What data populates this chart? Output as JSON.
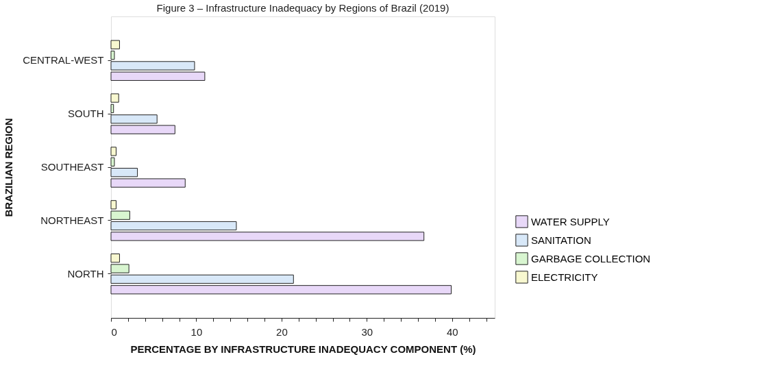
{
  "chart_data": {
    "type": "bar",
    "orientation": "horizontal",
    "title": "Figure 3 – Infrastructure Inadequacy by Regions of Brazil (2019)",
    "xlabel": "PERCENTAGE BY INFRASTRUCTURE INADEQUACY COMPONENT (%)",
    "ylabel": "BRAZILIAN REGION",
    "categories": [
      "CENTRAL-WEST",
      "SOUTH",
      "SOUTHEAST",
      "NORTHEAST",
      "NORTH"
    ],
    "series": [
      {
        "name": "WATER SUPPLY",
        "color": "#e8d8f8",
        "values": [
          11.0,
          7.5,
          8.7,
          36.7,
          39.9
        ]
      },
      {
        "name": "SANITATION",
        "color": "#d8e8f8",
        "values": [
          9.8,
          5.4,
          3.1,
          14.7,
          21.4
        ]
      },
      {
        "name": "GARBAGE COLLECTION",
        "color": "#d8f5d0",
        "values": [
          0.4,
          0.3,
          0.4,
          2.2,
          2.1
        ]
      },
      {
        "name": "ELECTRICITY",
        "color": "#f8f8d0",
        "values": [
          1.0,
          0.9,
          0.6,
          0.6,
          1.0
        ]
      }
    ],
    "xlim": [
      0,
      45
    ],
    "xticks": [
      0,
      {
        "value": 2,
        "label": null
      },
      {
        "value": 4,
        "label": null
      },
      {
        "value": 6,
        "label": null
      },
      {
        "value": 8,
        "label": null
      },
      10,
      {
        "value": 12,
        "label": null
      },
      {
        "value": 14,
        "label": null
      },
      {
        "value": 16,
        "label": null
      },
      {
        "value": 18,
        "label": null
      },
      20,
      {
        "value": 22,
        "label": null
      },
      {
        "value": 24,
        "label": null
      },
      {
        "value": 26,
        "label": null
      },
      {
        "value": 28,
        "label": null
      },
      30,
      {
        "value": 32,
        "label": null
      },
      {
        "value": 34,
        "label": null
      },
      {
        "value": 36,
        "label": null
      },
      {
        "value": 38,
        "label": null
      },
      40,
      {
        "value": 42,
        "label": null
      },
      {
        "value": 44,
        "label": null
      }
    ],
    "grid": false,
    "legend": "right"
  }
}
